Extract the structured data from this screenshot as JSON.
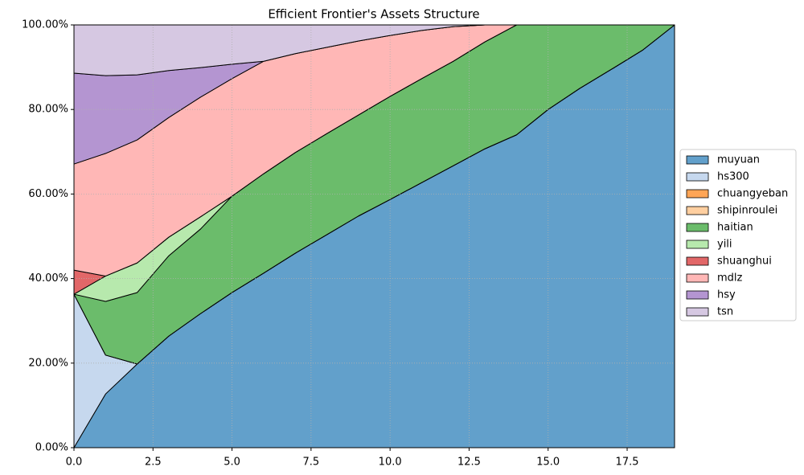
{
  "chart_data": {
    "type": "stacked-area",
    "title": "Efficient Frontier's Assets Structure",
    "x": [
      0,
      1,
      2,
      3,
      4,
      5,
      6,
      7,
      8,
      9,
      10,
      11,
      12,
      13,
      14,
      15,
      16,
      17,
      18,
      19
    ],
    "xlim": [
      0,
      19
    ],
    "xticks": [
      {
        "value": 0,
        "label": "0.0"
      },
      2.5,
      {
        "value": 5,
        "label": "5.0"
      },
      7.5,
      {
        "value": 10,
        "label": "10.0"
      },
      12.5,
      {
        "value": 15,
        "label": "15.0"
      },
      17.5
    ],
    "ylim": [
      0,
      100
    ],
    "yticks": [
      {
        "value": 0,
        "label": "0.00%"
      },
      {
        "value": 20,
        "label": "20.00%"
      },
      {
        "value": 40,
        "label": "40.00%"
      },
      {
        "value": 60,
        "label": "60.00%"
      },
      {
        "value": 80,
        "label": "80.00%"
      },
      {
        "value": 100,
        "label": "100.00%"
      }
    ],
    "grid": true,
    "legend": "right",
    "series": [
      {
        "name": "muyuan",
        "color": "#62a0cb",
        "values": [
          0,
          12.7,
          19.8,
          26.4,
          31.7,
          36.7,
          41.3,
          46,
          50.4,
          54.8,
          58.7,
          62.7,
          66.7,
          70.7,
          74,
          80,
          85,
          89.5,
          94.1,
          100
        ]
      },
      {
        "name": "hs300",
        "color": "#c6d8ee",
        "values": [
          36.3,
          9.2,
          0,
          0,
          0,
          0,
          0,
          0,
          0,
          0,
          0,
          0,
          0,
          0,
          0,
          0,
          0,
          0,
          0,
          0
        ]
      },
      {
        "name": "chuangyeban",
        "color": "#ffa556",
        "values": [
          0,
          0,
          0,
          0,
          0,
          0,
          0,
          0,
          0,
          0,
          0,
          0,
          0,
          0,
          0,
          0,
          0,
          0,
          0,
          0
        ]
      },
      {
        "name": "shipinroulei",
        "color": "#ffcfa0",
        "values": [
          0,
          0,
          0,
          0,
          0,
          0,
          0,
          0,
          0,
          0,
          0,
          0,
          0,
          0,
          0,
          0,
          0,
          0,
          0,
          0
        ]
      },
      {
        "name": "haitian",
        "color": "#6bbc6b",
        "values": [
          0,
          12.7,
          16.9,
          19,
          20,
          22.8,
          23.5,
          23.8,
          23.9,
          23.9,
          24.4,
          24.6,
          24.7,
          25.3,
          26,
          20,
          15,
          10.5,
          5.9,
          0
        ]
      },
      {
        "name": "yili",
        "color": "#b7e9ad",
        "values": [
          0,
          6,
          7,
          4.4,
          2.9,
          0,
          0,
          0,
          0,
          0,
          0,
          0,
          0,
          0,
          0,
          0,
          0,
          0,
          0,
          0
        ]
      },
      {
        "name": "shuanghui",
        "color": "#e26768",
        "values": [
          5.7,
          0,
          0,
          0,
          0,
          0,
          0,
          0,
          0,
          0,
          0,
          0,
          0,
          0,
          0,
          0,
          0,
          0,
          0,
          0
        ]
      },
      {
        "name": "mdlz",
        "color": "#ffb7b6",
        "values": [
          25.1,
          29,
          29.1,
          28.3,
          28.3,
          27.8,
          26.6,
          23.4,
          20.4,
          17.5,
          14.4,
          11.4,
          8.2,
          4,
          0,
          0,
          0,
          0,
          0,
          0
        ]
      },
      {
        "name": "hsy",
        "color": "#b495d1",
        "values": [
          21.5,
          18.4,
          15.4,
          11.1,
          7,
          3.4,
          0,
          0,
          0,
          0,
          0,
          0,
          0,
          0,
          0,
          0,
          0,
          0,
          0,
          0
        ]
      },
      {
        "name": "tsn",
        "color": "#d6c8e2",
        "values": [
          11.4,
          12,
          11.8,
          10.8,
          10.1,
          9.3,
          8.6,
          6.8,
          5.3,
          3.8,
          2.5,
          1.3,
          0.4,
          0,
          0,
          0,
          0,
          0,
          0,
          0
        ]
      }
    ]
  }
}
